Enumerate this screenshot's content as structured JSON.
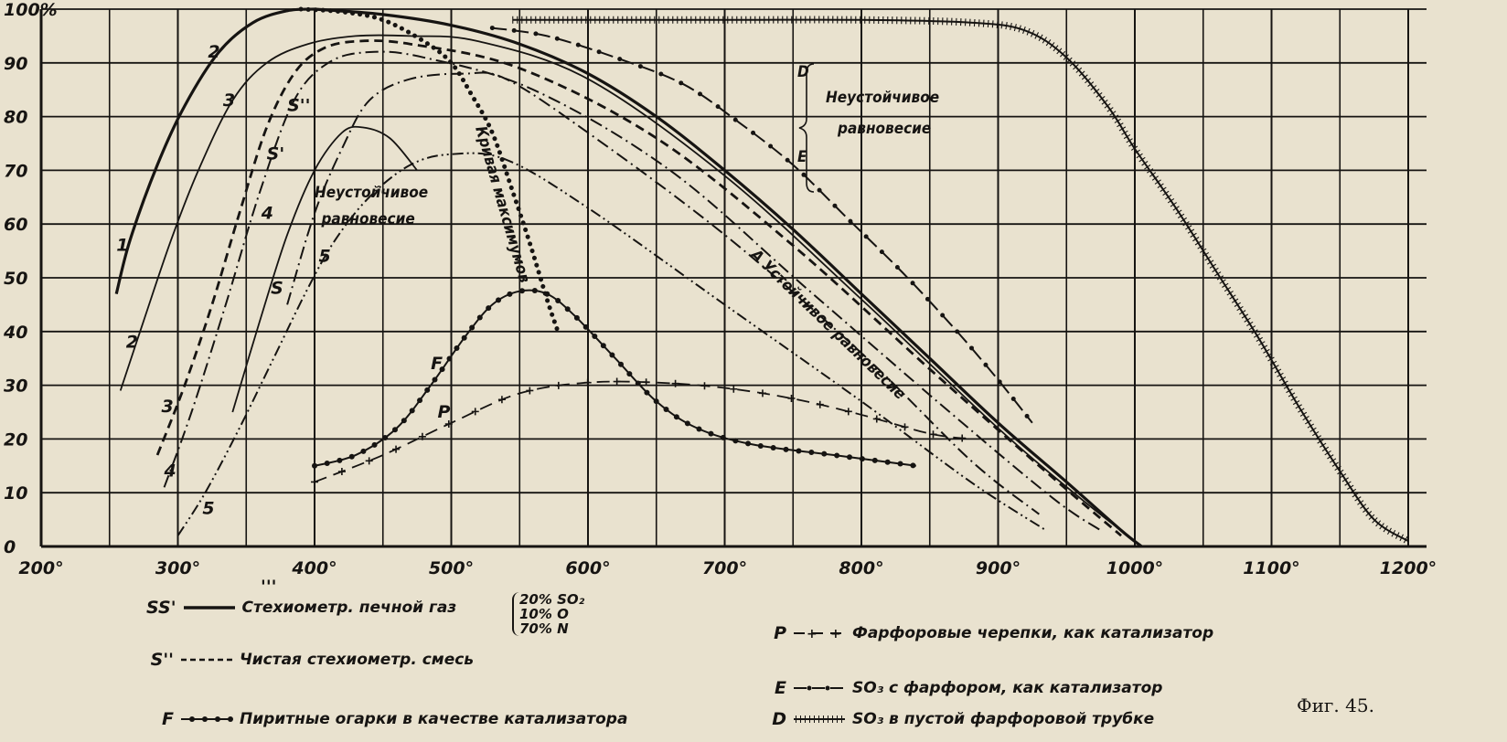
{
  "chart_data": {
    "type": "line",
    "title": "",
    "xlabel": "",
    "ylabel": "",
    "xlim": [
      200,
      1200
    ],
    "ylim": [
      0,
      100
    ],
    "grid": true,
    "x_ticks": [
      "200°",
      "300°",
      "400°",
      "500°",
      "600°",
      "700°",
      "800°",
      "900°",
      "1000°",
      "1100°",
      "1200°"
    ],
    "x_tick_values": [
      200,
      300,
      400,
      500,
      600,
      700,
      800,
      900,
      1000,
      1100,
      1200
    ],
    "y_ticks": [
      "0",
      "10",
      "20",
      "30",
      "40",
      "50",
      "60",
      "70",
      "80",
      "90",
      "100%"
    ],
    "y_tick_values": [
      0,
      10,
      20,
      30,
      40,
      50,
      60,
      70,
      80,
      90,
      100
    ],
    "series": [
      {
        "name": "SS'",
        "style": "solid-heavy",
        "points": [
          [
            400,
            100
          ],
          [
            450,
            99
          ],
          [
            500,
            97
          ],
          [
            550,
            93.5
          ],
          [
            600,
            88
          ],
          [
            650,
            80
          ],
          [
            700,
            70
          ],
          [
            750,
            59
          ],
          [
            800,
            47
          ],
          [
            850,
            35
          ],
          [
            900,
            23
          ],
          [
            950,
            12
          ],
          [
            990,
            3
          ],
          [
            1005,
            0
          ]
        ]
      },
      {
        "name": "1",
        "style": "solid-heavy",
        "points": [
          [
            255,
            47
          ],
          [
            265,
            57
          ],
          [
            285,
            71
          ],
          [
            305,
            82
          ],
          [
            330,
            92
          ],
          [
            355,
            97.5
          ],
          [
            380,
            99.7
          ],
          [
            400,
            100
          ]
        ]
      },
      {
        "name": "2",
        "style": "solid",
        "points": [
          [
            258,
            29
          ],
          [
            275,
            42
          ],
          [
            295,
            57
          ],
          [
            315,
            70
          ],
          [
            340,
            83
          ],
          [
            365,
            90
          ],
          [
            395,
            93.5
          ],
          [
            430,
            95
          ],
          [
            470,
            95
          ],
          [
            520,
            94
          ],
          [
            600,
            87
          ],
          [
            700,
            69
          ],
          [
            800,
            46
          ],
          [
            900,
            22
          ],
          [
            960,
            9
          ],
          [
            1000,
            1
          ]
        ]
      },
      {
        "name": "3 (S'')",
        "style": "dashed-heavy",
        "points": [
          [
            285,
            17
          ],
          [
            305,
            30
          ],
          [
            325,
            45
          ],
          [
            345,
            62
          ],
          [
            365,
            78
          ],
          [
            385,
            88
          ],
          [
            405,
            92.5
          ],
          [
            430,
            94
          ],
          [
            470,
            93.5
          ],
          [
            550,
            89
          ],
          [
            650,
            76
          ],
          [
            750,
            56
          ],
          [
            850,
            33
          ],
          [
            930,
            15
          ],
          [
            990,
            2
          ]
        ]
      },
      {
        "name": "4",
        "style": "dash-dot",
        "points": [
          [
            290,
            11
          ],
          [
            310,
            25
          ],
          [
            335,
            45
          ],
          [
            360,
            66
          ],
          [
            385,
            83
          ],
          [
            410,
            90
          ],
          [
            440,
            92
          ],
          [
            480,
            91
          ],
          [
            560,
            85
          ],
          [
            660,
            70
          ],
          [
            760,
            48
          ],
          [
            860,
            26
          ],
          [
            940,
            9
          ],
          [
            975,
            3
          ]
        ]
      },
      {
        "name": "S",
        "style": "solid",
        "points": [
          [
            340,
            25
          ],
          [
            360,
            42
          ],
          [
            380,
            58
          ],
          [
            400,
            70
          ],
          [
            420,
            77
          ],
          [
            435,
            78
          ],
          [
            455,
            76
          ],
          [
            475,
            70
          ]
        ]
      },
      {
        "name": "4'",
        "style": "dash-dot",
        "points": [
          [
            380,
            45
          ],
          [
            400,
            62
          ],
          [
            420,
            74
          ],
          [
            440,
            83
          ],
          [
            470,
            87
          ],
          [
            510,
            88
          ],
          [
            540,
            87
          ],
          [
            600,
            77
          ],
          [
            700,
            58
          ],
          [
            800,
            36
          ],
          [
            880,
            16
          ],
          [
            930,
            6
          ]
        ]
      },
      {
        "name": "5",
        "style": "dash-dot-dot",
        "points": [
          [
            300,
            2
          ],
          [
            320,
            10
          ],
          [
            345,
            22
          ],
          [
            370,
            35
          ],
          [
            395,
            48
          ],
          [
            415,
            57
          ],
          [
            440,
            65
          ],
          [
            470,
            71
          ],
          [
            500,
            73
          ],
          [
            540,
            72
          ],
          [
            600,
            63
          ],
          [
            700,
            45
          ],
          [
            800,
            27
          ],
          [
            880,
            12
          ],
          [
            935,
            3
          ]
        ]
      },
      {
        "name": "Кривая максимумов",
        "style": "dotted",
        "points": [
          [
            390,
            100
          ],
          [
            420,
            99.5
          ],
          [
            450,
            98
          ],
          [
            480,
            94
          ],
          [
            500,
            90
          ],
          [
            515,
            84
          ],
          [
            530,
            77
          ],
          [
            545,
            66
          ],
          [
            558,
            56
          ],
          [
            570,
            46
          ],
          [
            578,
            40
          ]
        ]
      },
      {
        "name": "F",
        "style": "dot-beads",
        "points": [
          [
            400,
            15
          ],
          [
            430,
            17
          ],
          [
            460,
            22
          ],
          [
            485,
            30
          ],
          [
            510,
            39
          ],
          [
            530,
            45
          ],
          [
            550,
            47.5
          ],
          [
            570,
            47
          ],
          [
            590,
            43
          ],
          [
            620,
            35
          ],
          [
            650,
            27
          ],
          [
            680,
            22
          ],
          [
            720,
            19
          ],
          [
            780,
            17
          ],
          [
            840,
            15
          ]
        ]
      },
      {
        "name": "P",
        "style": "plus-dash",
        "points": [
          [
            400,
            12
          ],
          [
            450,
            17
          ],
          [
            500,
            23
          ],
          [
            550,
            28.5
          ],
          [
            600,
            30.5
          ],
          [
            650,
            30.5
          ],
          [
            700,
            29.5
          ],
          [
            750,
            27.5
          ],
          [
            800,
            24.5
          ],
          [
            850,
            21
          ],
          [
            880,
            20
          ]
        ]
      },
      {
        "name": "E",
        "style": "dash-dot-beads",
        "points": [
          [
            530,
            96.5
          ],
          [
            570,
            95
          ],
          [
            620,
            91
          ],
          [
            670,
            86
          ],
          [
            710,
            79
          ],
          [
            750,
            71
          ],
          [
            790,
            61
          ],
          [
            830,
            51
          ],
          [
            870,
            40
          ],
          [
            900,
            31
          ],
          [
            925,
            23
          ]
        ]
      },
      {
        "name": "D",
        "style": "cross-hatched",
        "points": [
          [
            545,
            98
          ],
          [
            700,
            98
          ],
          [
            800,
            98
          ],
          [
            880,
            97.5
          ],
          [
            920,
            96
          ],
          [
            950,
            91
          ],
          [
            980,
            82
          ],
          [
            1000,
            74
          ],
          [
            1030,
            63
          ],
          [
            1060,
            51
          ],
          [
            1090,
            39
          ],
          [
            1120,
            26
          ],
          [
            1150,
            14
          ],
          [
            1175,
            5
          ],
          [
            1200,
            1
          ]
        ]
      }
    ],
    "curve_labels": [
      "1",
      "2",
      "3",
      "4",
      "5",
      "S'",
      "S''",
      "S",
      "F",
      "P",
      "2",
      "3",
      "4",
      "5"
    ],
    "annotations": [
      "Неустойчивое",
      "равновесие",
      "Кривая максимумов",
      "А Устойчивое равновесие",
      "D",
      "E",
      "Неустойчивое",
      "равновесие"
    ],
    "stray_mark": "'''",
    "legend": [
      {
        "key": "SS'",
        "label": "Стехиометр. печной газ",
        "style": "solid-heavy"
      },
      {
        "key": "S''",
        "label": "Чистая стехиометр. смесь",
        "style": "dashed-heavy"
      },
      {
        "key": "F",
        "label": "Пиритные огарки в качестве катализатора",
        "style": "dot-beads"
      },
      {
        "key": "P",
        "label": "Фарфоровые черепки, как катализатор",
        "style": "plus-dash"
      },
      {
        "key": "E",
        "label": "SO₃ с фарфором, как катализатор",
        "style": "dash-dot-beads"
      },
      {
        "key": "D",
        "label": "SO₃ в пустой фарфоровой трубке",
        "style": "cross-hatched"
      }
    ],
    "gas_composition": [
      "20% SO₂",
      "10% O",
      "70% N"
    ],
    "figure_caption": "Фиг. 45."
  },
  "colors": {
    "ink": "#161412",
    "paper": "#e9e2cf"
  }
}
